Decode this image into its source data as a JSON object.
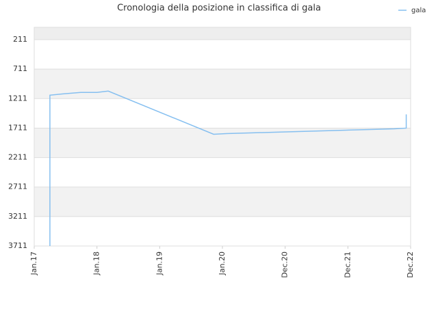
{
  "chart_data": {
    "type": "line",
    "title": "Cronologia della posizione in classifica di gala",
    "x": [
      0.25,
      0.25,
      0.46,
      0.74,
      1.0,
      1.18,
      2.86,
      3.06,
      3.44,
      3.83,
      4.21,
      4.59,
      4.97,
      5.36,
      5.74,
      5.93,
      5.93
    ],
    "series": [
      {
        "name": "gala",
        "color": "#85bff0",
        "values": [
          3711,
          1153,
          1130,
          1106,
          1106,
          1083,
          1816,
          1804,
          1793,
          1781,
          1770,
          1758,
          1746,
          1735,
          1723,
          1711,
          1479
        ]
      }
    ],
    "xlim": [
      0,
      6
    ],
    "xticks": [
      {
        "value": 0,
        "label": "Jan.17"
      },
      {
        "value": 1,
        "label": "Jan.18"
      },
      {
        "value": 2,
        "label": "Jan.19"
      },
      {
        "value": 3,
        "label": "Jan.20"
      },
      {
        "value": 4,
        "label": "Dec.20"
      },
      {
        "value": 5,
        "label": "Dec.21"
      },
      {
        "value": 6,
        "label": "Dec.22"
      }
    ],
    "ylim": [
      3711,
      2
    ],
    "yticks": [
      211,
      711,
      1211,
      1711,
      2211,
      2711,
      3211,
      3711
    ],
    "grid": true,
    "legend": "top-right"
  }
}
